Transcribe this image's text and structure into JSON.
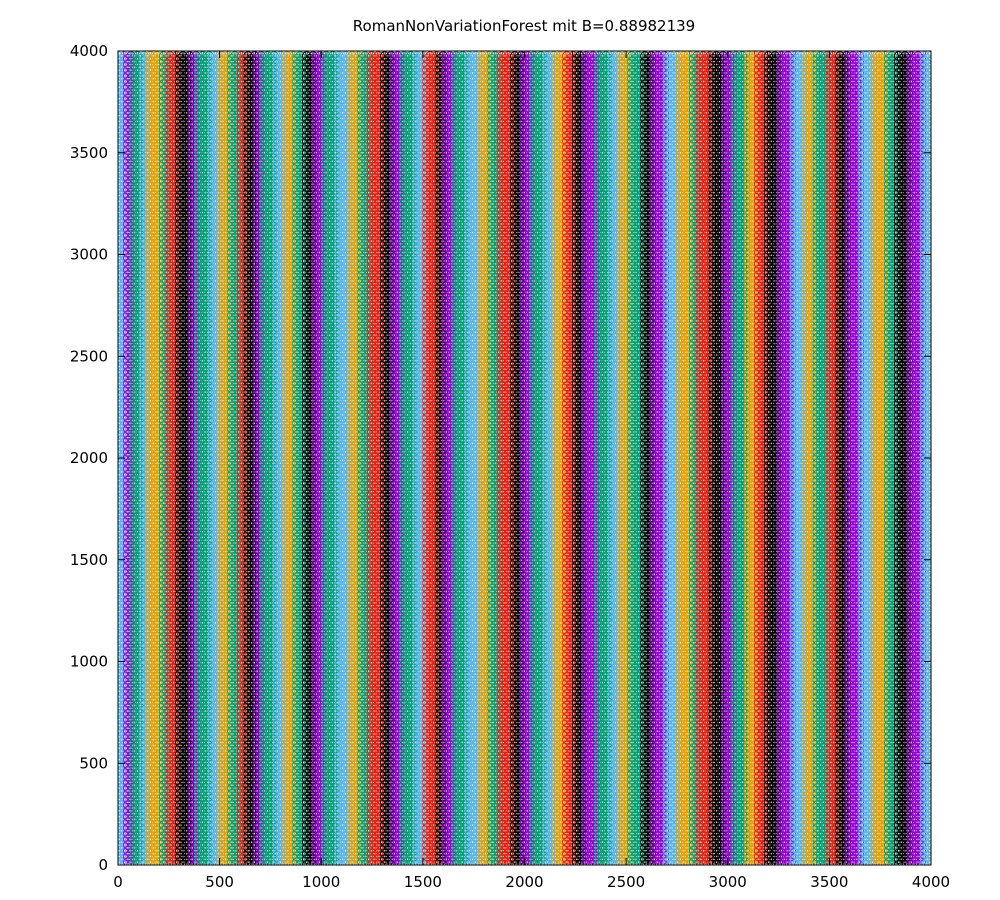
{
  "chart_data": {
    "type": "scatter",
    "title": "RomanNonVariationForest mit B=0.88982139",
    "xlabel": "",
    "ylabel": "",
    "xlim": [
      0,
      4000
    ],
    "ylim": [
      0,
      4000
    ],
    "x_ticks": [
      "0",
      "500",
      "1000",
      "1500",
      "2000",
      "2500",
      "3000",
      "3500",
      "4000"
    ],
    "y_ticks": [
      "0",
      "500",
      "1000",
      "1500",
      "2000",
      "2500",
      "3000",
      "3500",
      "4000"
    ],
    "grid": false,
    "legend": "none",
    "marker": "open-circle",
    "lattice": {
      "column_spacing": 16,
      "row_spacing": 28,
      "odd_column_row_offset": 14
    },
    "color_cycle": [
      "#9400d3",
      "#009e73",
      "#56b4e9",
      "#e69f00",
      "#f0e442",
      "#0072b2",
      "#e51e10",
      "#000000"
    ],
    "color_bands": [
      {
        "x_from": 0,
        "x_to": 40,
        "color": "#56b4e9"
      },
      {
        "x_from": 40,
        "x_to": 80,
        "color": "#9400d3"
      },
      {
        "x_from": 80,
        "x_to": 120,
        "color": "#009e73"
      },
      {
        "x_from": 120,
        "x_to": 160,
        "color": "#56b4e9"
      },
      {
        "x_from": 160,
        "x_to": 210,
        "color": "#e69f00"
      },
      {
        "x_from": 210,
        "x_to": 250,
        "color": "#009e73"
      },
      {
        "x_from": 250,
        "x_to": 300,
        "color": "#e51e10"
      },
      {
        "x_from": 300,
        "x_to": 360,
        "color": "#000000"
      },
      {
        "x_from": 360,
        "x_to": 400,
        "color": "#9400d3"
      },
      {
        "x_from": 400,
        "x_to": 450,
        "color": "#009e73"
      },
      {
        "x_from": 450,
        "x_to": 500,
        "color": "#56b4e9"
      },
      {
        "x_from": 500,
        "x_to": 560,
        "color": "#e69f00"
      },
      {
        "x_from": 560,
        "x_to": 600,
        "color": "#009e73"
      },
      {
        "x_from": 600,
        "x_to": 640,
        "color": "#e51e10"
      },
      {
        "x_from": 640,
        "x_to": 680,
        "color": "#000000"
      },
      {
        "x_from": 680,
        "x_to": 720,
        "color": "#9400d3"
      },
      {
        "x_from": 720,
        "x_to": 770,
        "color": "#009e73"
      },
      {
        "x_from": 770,
        "x_to": 820,
        "color": "#56b4e9"
      },
      {
        "x_from": 820,
        "x_to": 870,
        "color": "#e69f00"
      },
      {
        "x_from": 870,
        "x_to": 920,
        "color": "#009e73"
      },
      {
        "x_from": 920,
        "x_to": 970,
        "color": "#000000"
      },
      {
        "x_from": 970,
        "x_to": 1020,
        "color": "#9400d3"
      },
      {
        "x_from": 1020,
        "x_to": 1080,
        "color": "#009e73"
      },
      {
        "x_from": 1080,
        "x_to": 1140,
        "color": "#56b4e9"
      },
      {
        "x_from": 1140,
        "x_to": 1190,
        "color": "#e69f00"
      },
      {
        "x_from": 1190,
        "x_to": 1240,
        "color": "#009e73"
      },
      {
        "x_from": 1240,
        "x_to": 1300,
        "color": "#e51e10"
      },
      {
        "x_from": 1300,
        "x_to": 1350,
        "color": "#000000"
      },
      {
        "x_from": 1350,
        "x_to": 1400,
        "color": "#9400d3"
      },
      {
        "x_from": 1400,
        "x_to": 1460,
        "color": "#009e73"
      },
      {
        "x_from": 1460,
        "x_to": 1520,
        "color": "#56b4e9"
      },
      {
        "x_from": 1520,
        "x_to": 1570,
        "color": "#e51e10"
      },
      {
        "x_from": 1570,
        "x_to": 1610,
        "color": "#000000"
      },
      {
        "x_from": 1610,
        "x_to": 1660,
        "color": "#9400d3"
      },
      {
        "x_from": 1660,
        "x_to": 1720,
        "color": "#009e73"
      },
      {
        "x_from": 1720,
        "x_to": 1780,
        "color": "#56b4e9"
      },
      {
        "x_from": 1780,
        "x_to": 1840,
        "color": "#e69f00"
      },
      {
        "x_from": 1840,
        "x_to": 1880,
        "color": "#009e73"
      },
      {
        "x_from": 1880,
        "x_to": 1940,
        "color": "#e51e10"
      },
      {
        "x_from": 1940,
        "x_to": 1990,
        "color": "#000000"
      },
      {
        "x_from": 1990,
        "x_to": 2040,
        "color": "#9400d3"
      },
      {
        "x_from": 2040,
        "x_to": 2100,
        "color": "#009e73"
      },
      {
        "x_from": 2100,
        "x_to": 2160,
        "color": "#56b4e9"
      },
      {
        "x_from": 2160,
        "x_to": 2200,
        "color": "#e69f00"
      },
      {
        "x_from": 2200,
        "x_to": 2250,
        "color": "#e51e10"
      },
      {
        "x_from": 2250,
        "x_to": 2300,
        "color": "#000000"
      },
      {
        "x_from": 2300,
        "x_to": 2360,
        "color": "#9400d3"
      },
      {
        "x_from": 2360,
        "x_to": 2420,
        "color": "#009e73"
      },
      {
        "x_from": 2420,
        "x_to": 2480,
        "color": "#56b4e9"
      },
      {
        "x_from": 2480,
        "x_to": 2520,
        "color": "#e69f00"
      },
      {
        "x_from": 2520,
        "x_to": 2580,
        "color": "#009e73"
      },
      {
        "x_from": 2580,
        "x_to": 2640,
        "color": "#000000"
      },
      {
        "x_from": 2640,
        "x_to": 2700,
        "color": "#9400d3"
      },
      {
        "x_from": 2700,
        "x_to": 2760,
        "color": "#56b4e9"
      },
      {
        "x_from": 2760,
        "x_to": 2820,
        "color": "#e69f00"
      },
      {
        "x_from": 2820,
        "x_to": 2860,
        "color": "#009e73"
      },
      {
        "x_from": 2860,
        "x_to": 2920,
        "color": "#e51e10"
      },
      {
        "x_from": 2920,
        "x_to": 2980,
        "color": "#000000"
      },
      {
        "x_from": 2980,
        "x_to": 3040,
        "color": "#9400d3"
      },
      {
        "x_from": 3040,
        "x_to": 3100,
        "color": "#009e73"
      },
      {
        "x_from": 3100,
        "x_to": 3140,
        "color": "#e69f00"
      },
      {
        "x_from": 3140,
        "x_to": 3200,
        "color": "#e51e10"
      },
      {
        "x_from": 3200,
        "x_to": 3260,
        "color": "#000000"
      },
      {
        "x_from": 3260,
        "x_to": 3320,
        "color": "#9400d3"
      },
      {
        "x_from": 3320,
        "x_to": 3380,
        "color": "#56b4e9"
      },
      {
        "x_from": 3380,
        "x_to": 3440,
        "color": "#e69f00"
      },
      {
        "x_from": 3440,
        "x_to": 3490,
        "color": "#009e73"
      },
      {
        "x_from": 3490,
        "x_to": 3540,
        "color": "#e51e10"
      },
      {
        "x_from": 3540,
        "x_to": 3600,
        "color": "#000000"
      },
      {
        "x_from": 3600,
        "x_to": 3660,
        "color": "#9400d3"
      },
      {
        "x_from": 3660,
        "x_to": 3720,
        "color": "#56b4e9"
      },
      {
        "x_from": 3720,
        "x_to": 3780,
        "color": "#e69f00"
      },
      {
        "x_from": 3780,
        "x_to": 3840,
        "color": "#009e73"
      },
      {
        "x_from": 3840,
        "x_to": 3900,
        "color": "#000000"
      },
      {
        "x_from": 3900,
        "x_to": 3960,
        "color": "#9400d3"
      },
      {
        "x_from": 3960,
        "x_to": 4000,
        "color": "#56b4e9"
      }
    ]
  }
}
